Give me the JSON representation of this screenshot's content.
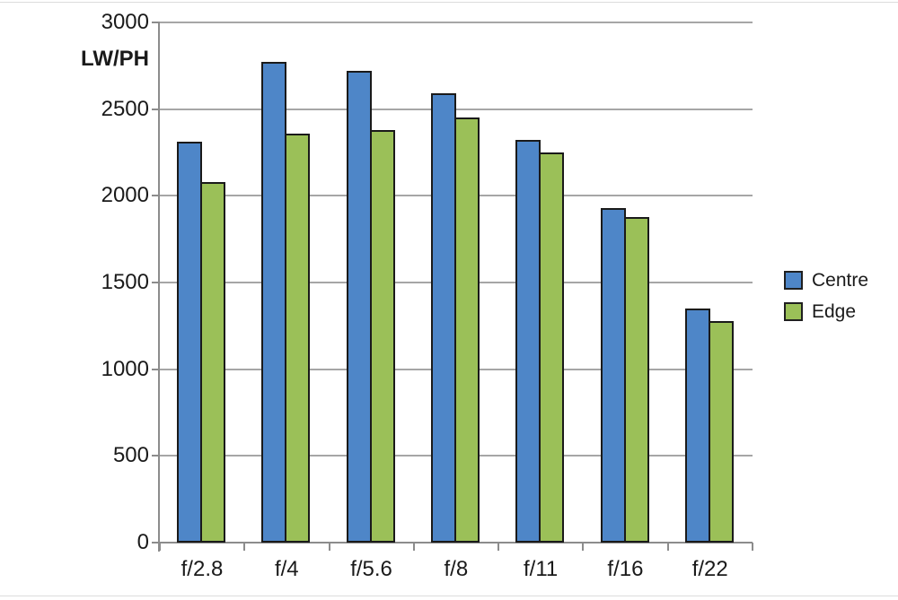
{
  "chart_data": {
    "type": "bar",
    "title": "",
    "ylabel": "LW/PH",
    "xlabel": "",
    "categories": [
      "f/2.8",
      "f/4",
      "f/5.6",
      "f/8",
      "f/11",
      "f/16",
      "f/22"
    ],
    "series": [
      {
        "name": "Centre",
        "color": "#4e86c8",
        "values": [
          2310,
          2770,
          2720,
          2590,
          2320,
          1930,
          1350
        ]
      },
      {
        "name": "Edge",
        "color": "#9bc058",
        "values": [
          2080,
          2360,
          2380,
          2450,
          2250,
          1880,
          1280
        ]
      }
    ],
    "ylim": [
      0,
      3000
    ],
    "yticks": [
      0,
      500,
      1000,
      1500,
      2000,
      2500,
      3000
    ],
    "grid": "horizontal",
    "legend_position": "right",
    "bar_outline_color": "#1a1a1a",
    "gridline_color": "#a6a6a6",
    "axis_color": "#8c8c8c"
  }
}
